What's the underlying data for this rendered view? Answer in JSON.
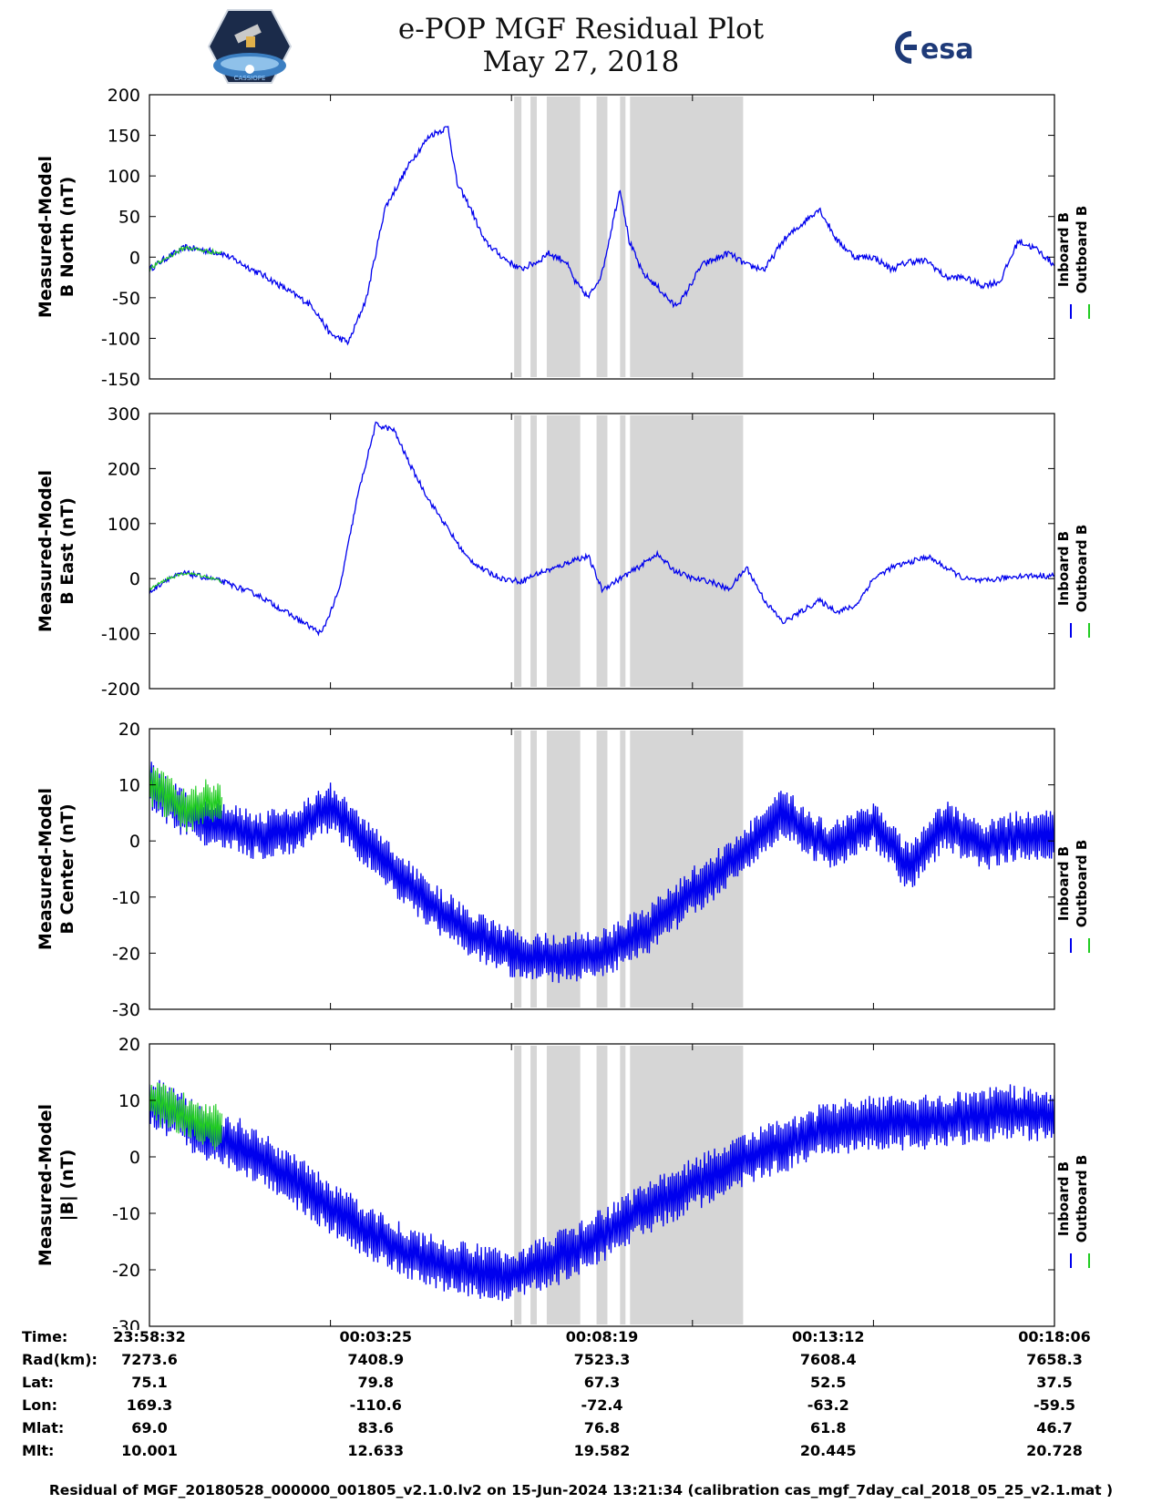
{
  "header": {
    "title_line1": "e-POP MGF Residual Plot",
    "title_line2": "May 27, 2018",
    "logo_left_text": "CASSIOPE",
    "logo_right_text": "esa"
  },
  "chart_data": [
    {
      "type": "line",
      "panel": "B North",
      "ylabel_line1": "Measured-Model",
      "ylabel_line2": "B North (nT)",
      "ylim": [
        -150,
        200
      ],
      "yticks": [
        200,
        150,
        100,
        50,
        0,
        -50,
        -100,
        -150
      ],
      "ytick_labels": [
        "200",
        "150",
        "100",
        "50",
        "0",
        "-50",
        "-100",
        "-150"
      ],
      "legend": [
        "Inboard B",
        "Outboard B"
      ],
      "series": [
        {
          "name": "Inboard B",
          "color": "#0000ee",
          "x": [
            0,
            2,
            4,
            8,
            13,
            18,
            20,
            22,
            24,
            26,
            29,
            31,
            33,
            34,
            35.5,
            37,
            39,
            41,
            43,
            44,
            46,
            47,
            48.5,
            50,
            52,
            53,
            54.5,
            56,
            58,
            59,
            61,
            63,
            64,
            66,
            68,
            70,
            72,
            74,
            76,
            78,
            80,
            82,
            84,
            86,
            88,
            90,
            92,
            94,
            96,
            98,
            100
          ],
          "y": [
            -15,
            0,
            12,
            5,
            -25,
            -60,
            -95,
            -105,
            -50,
            60,
            120,
            150,
            160,
            90,
            60,
            20,
            0,
            -15,
            -5,
            5,
            -5,
            -30,
            -50,
            -20,
            85,
            20,
            -20,
            -35,
            -60,
            -50,
            -10,
            0,
            5,
            -10,
            -15,
            20,
            40,
            60,
            20,
            0,
            0,
            -15,
            -5,
            -5,
            -25,
            -25,
            -35,
            -30,
            20,
            10,
            -10
          ],
          "noise": 4
        },
        {
          "name": "Outboard B",
          "color": "#22cc22",
          "x": [
            0,
            2,
            4,
            6,
            8
          ],
          "y": [
            -15,
            0,
            12,
            8,
            5
          ],
          "noise": 3
        }
      ]
    },
    {
      "type": "line",
      "panel": "B East",
      "ylabel_line1": "Measured-Model",
      "ylabel_line2": "B East (nT)",
      "ylim": [
        -200,
        300
      ],
      "yticks": [
        300,
        200,
        100,
        0,
        -100,
        -200
      ],
      "ytick_labels": [
        "300",
        "200",
        "100",
        "0",
        "-100",
        "-200"
      ],
      "legend": [
        "Inboard B",
        "Outboard B"
      ],
      "series": [
        {
          "name": "Inboard B",
          "color": "#0000ee",
          "x": [
            0,
            2,
            4,
            8,
            12,
            16,
            19,
            21,
            23,
            25,
            27,
            29,
            31,
            33,
            35,
            37,
            39,
            41,
            43,
            45,
            47,
            48.5,
            50,
            52,
            54,
            56,
            58,
            60,
            62,
            64,
            66,
            68,
            70,
            72,
            74,
            76,
            78,
            80,
            82,
            84,
            86,
            88,
            90,
            92,
            94,
            96,
            98,
            100
          ],
          "y": [
            -25,
            0,
            10,
            -5,
            -30,
            -70,
            -100,
            -20,
            150,
            280,
            270,
            200,
            140,
            90,
            40,
            15,
            0,
            -5,
            10,
            20,
            35,
            40,
            -20,
            0,
            20,
            45,
            15,
            0,
            -5,
            -20,
            20,
            -40,
            -80,
            -60,
            -40,
            -60,
            -50,
            0,
            20,
            30,
            40,
            20,
            0,
            -5,
            0,
            5,
            5,
            5
          ],
          "noise": 5
        },
        {
          "name": "Outboard B",
          "color": "#22cc22",
          "x": [
            0,
            2,
            4,
            6,
            8
          ],
          "y": [
            -20,
            0,
            10,
            5,
            -5
          ],
          "noise": 3
        }
      ]
    },
    {
      "type": "line",
      "panel": "B Center",
      "ylabel_line1": "Measured-Model",
      "ylabel_line2": "B Center (nT)",
      "ylim": [
        -30,
        20
      ],
      "yticks": [
        20,
        10,
        0,
        -10,
        -20,
        -30
      ],
      "ytick_labels": [
        "20",
        "10",
        "0",
        "-10",
        "-20",
        "-30"
      ],
      "legend": [
        "Inboard B",
        "Outboard B"
      ],
      "series": [
        {
          "name": "Inboard B",
          "color": "#0000ee",
          "x": [
            0,
            3,
            5,
            8,
            12,
            16,
            20,
            25,
            30,
            35,
            40,
            45,
            50,
            55,
            60,
            65,
            70,
            75,
            80,
            84,
            88,
            92,
            96,
            100
          ],
          "y": [
            10,
            6,
            4,
            3,
            1,
            2,
            6,
            -2,
            -10,
            -16,
            -20,
            -21,
            -20,
            -16,
            -9,
            -3,
            5,
            -1,
            3,
            -5,
            3,
            -1,
            1,
            1
          ],
          "noise": 3.2
        },
        {
          "name": "Outboard B",
          "color": "#22cc22",
          "x": [
            0,
            2,
            4,
            6,
            8
          ],
          "y": [
            10,
            8,
            5,
            7,
            6
          ],
          "noise": 3
        }
      ]
    },
    {
      "type": "line",
      "panel": "|B|",
      "ylabel_line1": "Measured-Model",
      "ylabel_line2": "|B| (nT)",
      "ylim": [
        -30,
        20
      ],
      "yticks": [
        20,
        10,
        0,
        -10,
        -20,
        -30
      ],
      "ytick_labels": [
        "20",
        "10",
        "0",
        "-10",
        "-20",
        "-30"
      ],
      "legend": [
        "Inboard B",
        "Outboard B"
      ],
      "series": [
        {
          "name": "Inboard B",
          "color": "#0000ee",
          "x": [
            0,
            5,
            10,
            15,
            20,
            25,
            30,
            35,
            40,
            45,
            50,
            55,
            60,
            65,
            70,
            75,
            80,
            85,
            90,
            95,
            100
          ],
          "y": [
            10,
            5,
            2,
            -3,
            -9,
            -14,
            -18,
            -20,
            -21,
            -18,
            -14,
            -9,
            -5,
            -1,
            2,
            5,
            6,
            6,
            7,
            8,
            7
          ],
          "noise": 3.5
        },
        {
          "name": "Outboard B",
          "color": "#22cc22",
          "x": [
            0,
            2,
            4,
            6,
            8
          ],
          "y": [
            10,
            9,
            7,
            6,
            5
          ],
          "noise": 3
        }
      ]
    }
  ],
  "shaded_intervals_pct": [
    [
      40.3,
      41.1
    ],
    [
      42.1,
      42.8
    ],
    [
      43.9,
      47.6
    ],
    [
      49.4,
      50.6
    ],
    [
      52.0,
      52.6
    ],
    [
      53.1,
      65.6
    ]
  ],
  "x_tick_positions_pct": [
    0,
    20,
    40,
    60,
    80,
    100
  ],
  "table": {
    "row_labels": [
      "Time:",
      "Rad(km):",
      "Lat:",
      "Lon:",
      "Mlat:",
      "Mlt:"
    ],
    "columns": [
      [
        "23:58:32",
        "7273.6",
        "75.1",
        "169.3",
        "69.0",
        "10.001"
      ],
      [
        "00:03:25",
        "7408.9",
        "79.8",
        "-110.6",
        "83.6",
        "12.633"
      ],
      [
        "00:08:19",
        "7523.3",
        "67.3",
        "-72.4",
        "76.8",
        "19.582"
      ],
      [
        "00:13:12",
        "7608.4",
        "52.5",
        "-63.2",
        "61.8",
        "20.445"
      ],
      [
        "00:18:06",
        "7658.3",
        "37.5",
        "-59.5",
        "46.7",
        "20.728"
      ]
    ]
  },
  "footnote": "Residual of MGF_20180528_000000_001805_v2.1.0.lv2 on 15-Jun-2024 13:21:34 (calibration cas_mgf_7day_cal_2018_05_25_v2.1.mat )",
  "colors": {
    "inboard": "#0000ee",
    "outboard": "#22cc22",
    "shade": "#d6d6d6"
  }
}
